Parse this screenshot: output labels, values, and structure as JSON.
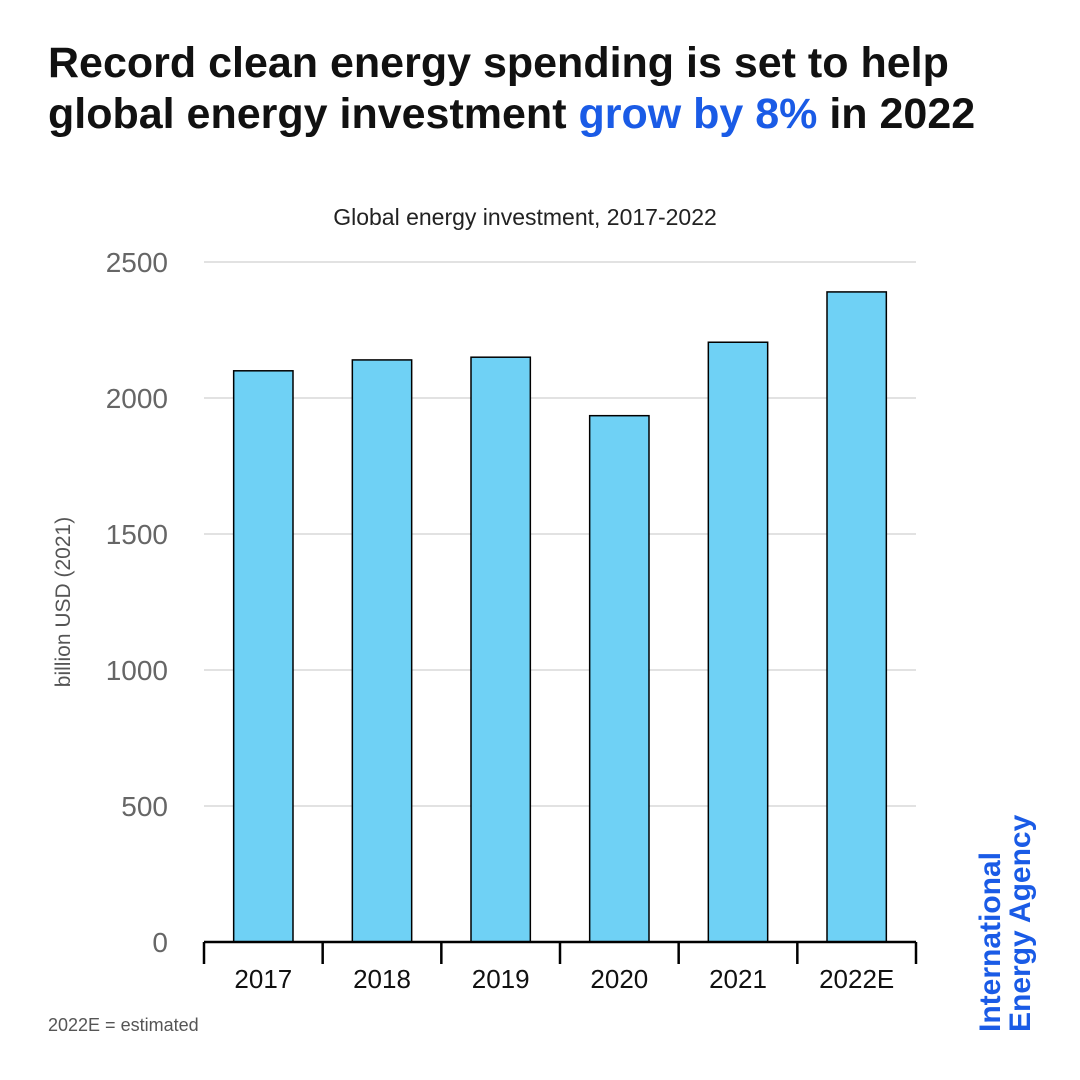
{
  "headline": {
    "line1": "Record clean energy spending is set to help",
    "line2_start": "global energy investment ",
    "line2_accent": "grow by 8%",
    "line2_end": " in 2022"
  },
  "brand": {
    "line1": "International",
    "line2": "Energy Agency"
  },
  "colors": {
    "bar": "#6fd1f5",
    "accent": "#1a5be6",
    "grid": "#e2e2e2"
  },
  "chart_data": {
    "type": "bar",
    "title": "Global energy investment, 2017-2022",
    "ylabel": "billion USD (2021)",
    "xlabel": "",
    "categories": [
      "2017",
      "2018",
      "2019",
      "2020",
      "2021",
      "2022E"
    ],
    "values": [
      2100,
      2140,
      2150,
      1935,
      2205,
      2390
    ],
    "ylim": [
      0,
      2500
    ],
    "yticks": [
      0,
      500,
      1000,
      1500,
      2000,
      2500
    ],
    "grid": true,
    "note": "2022E = estimated"
  }
}
